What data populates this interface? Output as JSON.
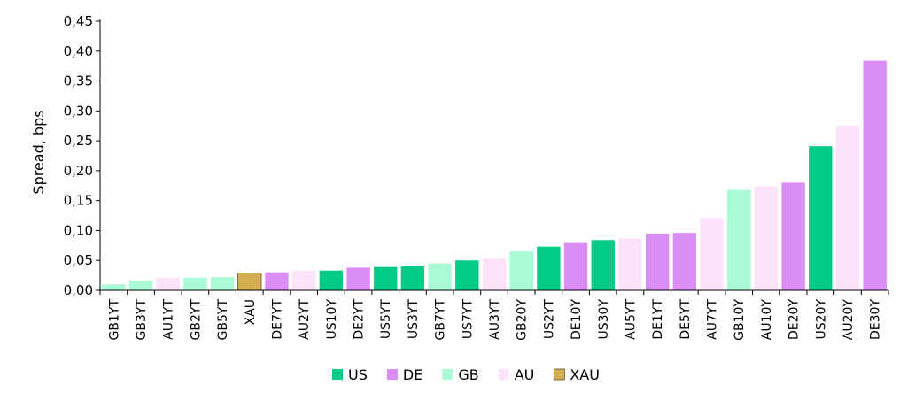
{
  "chart_data": {
    "type": "bar",
    "ylabel": "Spread, bps",
    "xlabel": "",
    "ylim": [
      0,
      0.45
    ],
    "yticks": [
      "0,00",
      "0,05",
      "0,10",
      "0,15",
      "0,20",
      "0,25",
      "0,30",
      "0,35",
      "0,40",
      "0,45"
    ],
    "grid": false,
    "legend_position": "bottom",
    "categories": [
      "GB1YT",
      "GB3YT",
      "AU1YT",
      "GB2YT",
      "GB5YT",
      "XAU",
      "DE7YT",
      "AU2YT",
      "US10Y",
      "DE2YT",
      "US5YT",
      "US3YT",
      "GB7YT",
      "US7YT",
      "AU3YT",
      "GB20Y",
      "US2YT",
      "DE10Y",
      "US30Y",
      "AU5YT",
      "DE1YT",
      "DE5YT",
      "AU7YT",
      "GB10Y",
      "AU10Y",
      "DE20Y",
      "US20Y",
      "AU20Y",
      "DE30Y"
    ],
    "values": [
      0.01,
      0.016,
      0.021,
      0.021,
      0.022,
      0.029,
      0.03,
      0.033,
      0.033,
      0.038,
      0.039,
      0.04,
      0.045,
      0.05,
      0.053,
      0.065,
      0.073,
      0.079,
      0.084,
      0.087,
      0.095,
      0.096,
      0.121,
      0.168,
      0.174,
      0.18,
      0.241,
      0.276,
      0.384
    ],
    "groups": [
      "GB",
      "GB",
      "AU",
      "GB",
      "GB",
      "XAU",
      "DE",
      "AU",
      "US",
      "DE",
      "US",
      "US",
      "GB",
      "US",
      "AU",
      "GB",
      "US",
      "DE",
      "US",
      "AU",
      "DE",
      "DE",
      "AU",
      "GB",
      "AU",
      "DE",
      "US",
      "AU",
      "DE"
    ],
    "series": [
      {
        "name": "US",
        "color": "#00cc88"
      },
      {
        "name": "DE",
        "color": "#d98df5"
      },
      {
        "name": "GB",
        "color": "#aafad5"
      },
      {
        "name": "AU",
        "color": "#fde3fa"
      },
      {
        "name": "XAU",
        "color": "#d4ae52"
      }
    ]
  }
}
